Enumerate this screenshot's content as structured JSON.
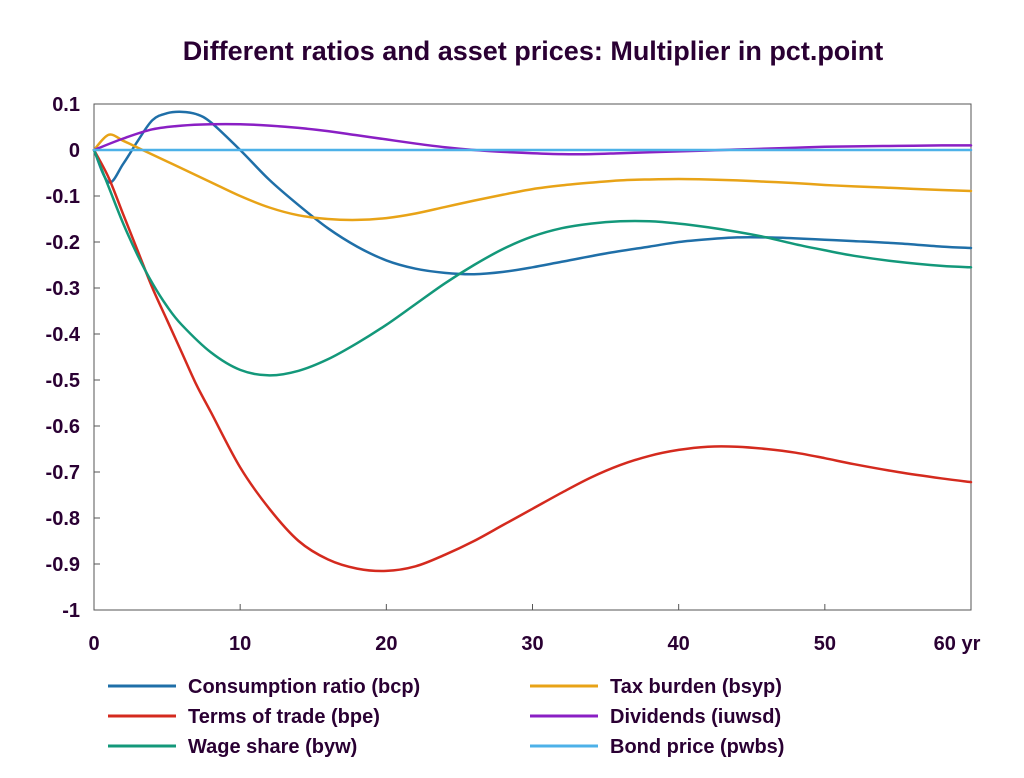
{
  "chart_data": {
    "type": "line",
    "title": "Different ratios and asset prices: Multiplier in pct.point",
    "xlabel": "",
    "ylabel": "",
    "x_unit_label": "yr",
    "xlim": [
      0,
      60
    ],
    "ylim": [
      -1,
      0.1
    ],
    "x_ticks": [
      0,
      10,
      20,
      30,
      40,
      50,
      60
    ],
    "x_tick_labels": [
      "0",
      "10",
      "20",
      "30",
      "40",
      "50",
      "60 yr"
    ],
    "y_ticks": [
      0.1,
      0,
      -0.1,
      -0.2,
      -0.3,
      -0.4,
      -0.5,
      -0.6,
      -0.7,
      -0.8,
      -0.9,
      -1
    ],
    "y_tick_labels": [
      "0.1",
      "0",
      "-0.1",
      "-0.2",
      "-0.3",
      "-0.4",
      "-0.5",
      "-0.6",
      "-0.7",
      "-0.8",
      "-0.9",
      "-1"
    ],
    "grid": false,
    "legend_position": "bottom",
    "series": [
      {
        "name": "Consumption ratio (bcp)",
        "color": "#1f6fa8",
        "x": [
          0,
          1,
          2,
          3,
          4,
          5,
          6,
          7,
          8,
          10,
          12,
          14,
          16,
          18,
          20,
          22,
          24,
          26,
          28,
          30,
          32,
          35,
          38,
          40,
          42,
          44,
          46,
          48,
          50,
          52,
          55,
          58,
          60
        ],
        "y": [
          0,
          -0.07,
          -0.03,
          0.02,
          0.065,
          0.08,
          0.083,
          0.078,
          0.06,
          0.0,
          -0.065,
          -0.12,
          -0.17,
          -0.21,
          -0.24,
          -0.258,
          -0.267,
          -0.27,
          -0.265,
          -0.255,
          -0.243,
          -0.225,
          -0.21,
          -0.2,
          -0.194,
          -0.19,
          -0.19,
          -0.192,
          -0.195,
          -0.198,
          -0.203,
          -0.21,
          -0.213
        ]
      },
      {
        "name": "Tax burden (bsyp)",
        "color": "#e8a317",
        "x": [
          0,
          1,
          2,
          3,
          4,
          5,
          6,
          8,
          10,
          12,
          14,
          16,
          18,
          20,
          22,
          24,
          26,
          28,
          30,
          32,
          34,
          36,
          38,
          40,
          42,
          44,
          46,
          48,
          50,
          52,
          55,
          58,
          60
        ],
        "y": [
          0,
          0.033,
          0.02,
          0.005,
          -0.01,
          -0.025,
          -0.04,
          -0.07,
          -0.1,
          -0.125,
          -0.142,
          -0.15,
          -0.152,
          -0.148,
          -0.138,
          -0.124,
          -0.11,
          -0.097,
          -0.085,
          -0.077,
          -0.071,
          -0.066,
          -0.064,
          -0.063,
          -0.064,
          -0.066,
          -0.069,
          -0.072,
          -0.076,
          -0.079,
          -0.083,
          -0.087,
          -0.089
        ]
      },
      {
        "name": "Terms of trade (bpe)",
        "color": "#d42a1e",
        "x": [
          0,
          1,
          2,
          3,
          4,
          5,
          6,
          7,
          8,
          10,
          12,
          14,
          16,
          18,
          20,
          22,
          24,
          26,
          28,
          30,
          32,
          34,
          36,
          38,
          40,
          42,
          44,
          46,
          48,
          50,
          52,
          55,
          58,
          60
        ],
        "y": [
          0,
          -0.06,
          -0.14,
          -0.22,
          -0.3,
          -0.37,
          -0.44,
          -0.51,
          -0.57,
          -0.69,
          -0.78,
          -0.85,
          -0.89,
          -0.91,
          -0.915,
          -0.905,
          -0.88,
          -0.85,
          -0.815,
          -0.78,
          -0.745,
          -0.712,
          -0.685,
          -0.665,
          -0.652,
          -0.645,
          -0.645,
          -0.65,
          -0.658,
          -0.67,
          -0.683,
          -0.7,
          -0.714,
          -0.722
        ]
      },
      {
        "name": "Dividends (iuwsd)",
        "color": "#8a1fc4",
        "x": [
          0,
          2,
          4,
          6,
          8,
          10,
          12,
          14,
          16,
          18,
          20,
          22,
          24,
          26,
          28,
          30,
          32,
          34,
          36,
          38,
          40,
          42,
          44,
          46,
          48,
          50,
          52,
          55,
          58,
          60
        ],
        "y": [
          0,
          0.025,
          0.045,
          0.053,
          0.056,
          0.056,
          0.053,
          0.048,
          0.041,
          0.032,
          0.023,
          0.014,
          0.006,
          0.0,
          -0.004,
          -0.007,
          -0.009,
          -0.009,
          -0.007,
          -0.005,
          -0.003,
          -0.001,
          0.001,
          0.003,
          0.005,
          0.007,
          0.008,
          0.009,
          0.01,
          0.01
        ]
      },
      {
        "name": "Wage share (byw)",
        "color": "#13987a",
        "x": [
          0,
          1,
          2,
          3,
          4,
          5,
          6,
          8,
          10,
          12,
          14,
          16,
          18,
          20,
          22,
          24,
          26,
          28,
          30,
          32,
          34,
          36,
          38,
          40,
          42,
          44,
          46,
          48,
          50,
          52,
          55,
          58,
          60
        ],
        "y": [
          0,
          -0.08,
          -0.16,
          -0.23,
          -0.29,
          -0.34,
          -0.38,
          -0.44,
          -0.478,
          -0.49,
          -0.48,
          -0.455,
          -0.42,
          -0.38,
          -0.335,
          -0.29,
          -0.25,
          -0.215,
          -0.188,
          -0.17,
          -0.16,
          -0.155,
          -0.155,
          -0.16,
          -0.168,
          -0.178,
          -0.19,
          -0.205,
          -0.218,
          -0.23,
          -0.243,
          -0.252,
          -0.255
        ]
      },
      {
        "name": "Bond price (pwbs)",
        "color": "#4db1e8",
        "x": [
          0,
          60
        ],
        "y": [
          0,
          0
        ]
      }
    ]
  }
}
